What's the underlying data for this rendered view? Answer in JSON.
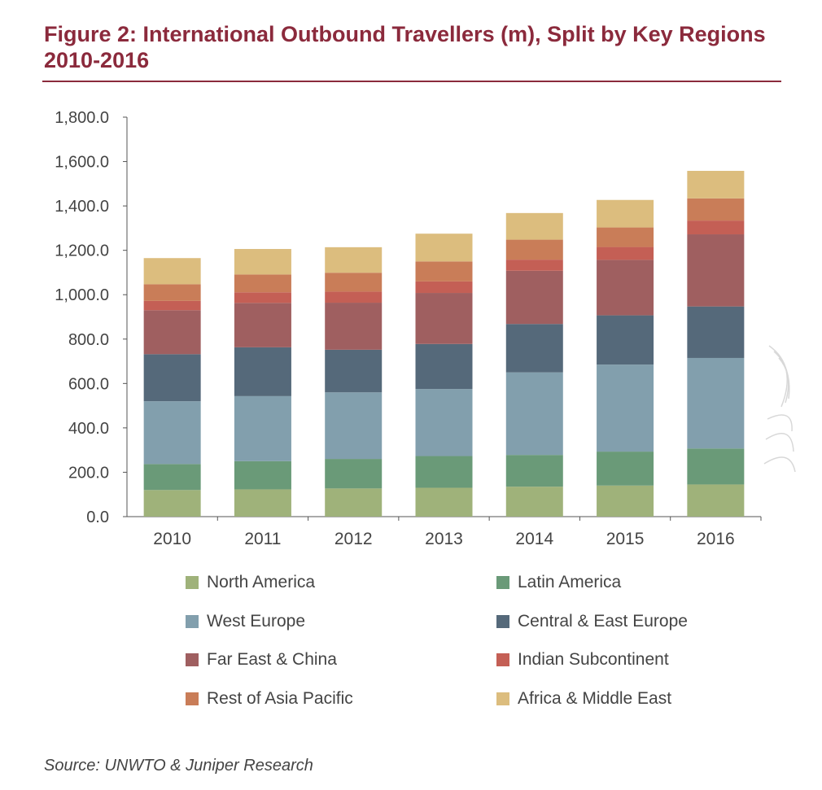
{
  "header": {
    "title": "Figure 2: International Outbound Travellers (m), Split by Key Regions 2010-2016"
  },
  "footer": {
    "source": "Source: UNWTO & Juniper Research"
  },
  "chart_data": {
    "type": "bar",
    "stacked": true,
    "title": "Figure 2: International Outbound Travellers (m), Split by Key Regions 2010-2016",
    "xlabel": "",
    "ylabel": "",
    "ylim": [
      0,
      1800
    ],
    "ytick_step": 200,
    "ytick_labels": [
      "0.0",
      "200.0",
      "400.0",
      "600.0",
      "800.0",
      "1,000.0",
      "1,200.0",
      "1,400.0",
      "1,600.0",
      "1,800.0"
    ],
    "grid": false,
    "legend_position": "bottom",
    "categories": [
      "2010",
      "2011",
      "2012",
      "2013",
      "2014",
      "2015",
      "2016"
    ],
    "series": [
      {
        "name": "North America",
        "color": "#9fb27a",
        "values": [
          120,
          123,
          127,
          130,
          135,
          140,
          145
        ]
      },
      {
        "name": "Latin America",
        "color": "#6a9a78",
        "values": [
          117,
          127,
          133,
          143,
          143,
          153,
          162
        ]
      },
      {
        "name": "West Europe",
        "color": "#829fad",
        "values": [
          283,
          293,
          300,
          302,
          372,
          392,
          408
        ]
      },
      {
        "name": "Central & East Europe",
        "color": "#55697a",
        "values": [
          212,
          220,
          192,
          203,
          218,
          222,
          232
        ]
      },
      {
        "name": "Far East & China",
        "color": "#9f5f60",
        "values": [
          198,
          200,
          212,
          230,
          240,
          250,
          325
        ]
      },
      {
        "name": "Indian Subcontinent",
        "color": "#c45f55",
        "values": [
          42,
          48,
          50,
          52,
          50,
          58,
          62
        ]
      },
      {
        "name": "Rest of Asia Pacific",
        "color": "#c97d58",
        "values": [
          75,
          80,
          85,
          90,
          90,
          88,
          100
        ]
      },
      {
        "name": "Africa & Middle East",
        "color": "#dcbd7e",
        "values": [
          118,
          115,
          115,
          125,
          120,
          124,
          124
        ]
      }
    ]
  }
}
